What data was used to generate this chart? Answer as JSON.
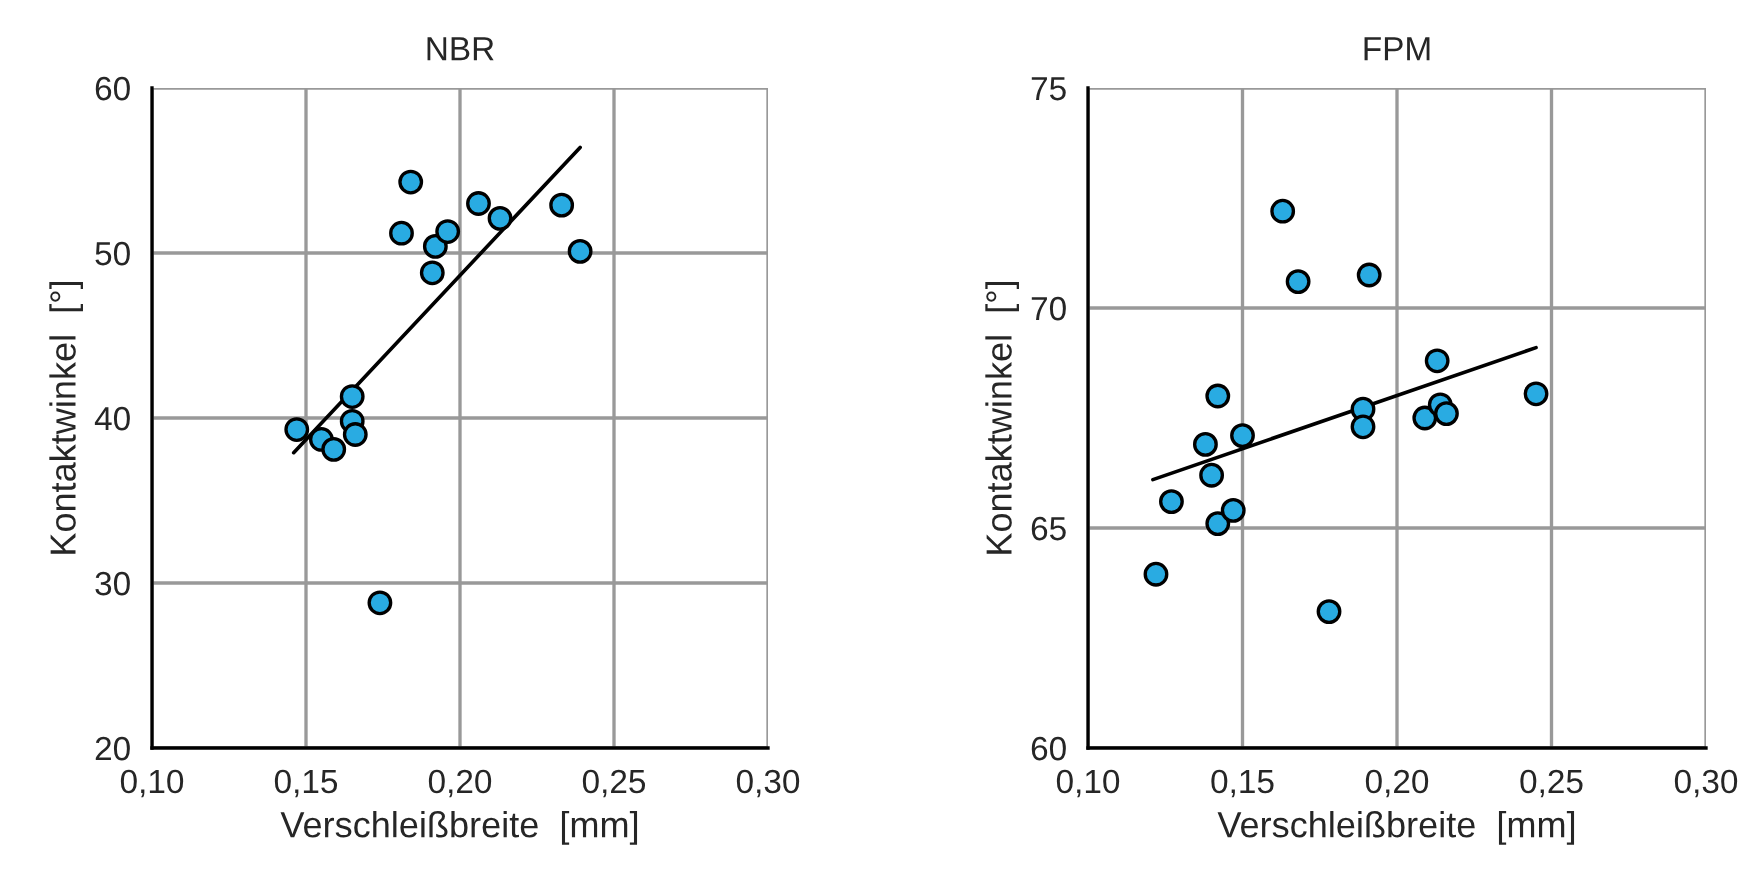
{
  "chart_data": [
    {
      "type": "scatter",
      "title": "NBR",
      "xlabel": "Verschleißbreite  [mm]",
      "ylabel": "Kontaktwinkel  [°]",
      "xlim": [
        0.1,
        0.3
      ],
      "ylim": [
        20,
        60
      ],
      "xticks": [
        {
          "value": 0.1,
          "label": "0,10"
        },
        {
          "value": 0.15,
          "label": "0,15"
        },
        {
          "value": 0.2,
          "label": "0,20"
        },
        {
          "value": 0.25,
          "label": "0,25"
        },
        {
          "value": 0.3,
          "label": "0,30"
        }
      ],
      "yticks": [
        20,
        30,
        40,
        50,
        60
      ],
      "grid": true,
      "marker": "circle",
      "series": [
        {
          "color": "#29abe2",
          "x": [
            0.147,
            0.155,
            0.159,
            0.165,
            0.165,
            0.166,
            0.174,
            0.181,
            0.184,
            0.191,
            0.192,
            0.196,
            0.206,
            0.213,
            0.233,
            0.239
          ],
          "values": [
            39.3,
            38.7,
            38.1,
            41.3,
            39.8,
            39.0,
            28.8,
            51.2,
            54.3,
            48.8,
            50.4,
            51.3,
            53.0,
            52.1,
            52.9,
            50.1
          ]
        },
        {
          "type": "line",
          "color": "#000000",
          "marker": "none",
          "line_style": "solid",
          "x": [
            0.146,
            0.239
          ],
          "values": [
            37.9,
            56.4
          ]
        }
      ]
    },
    {
      "type": "scatter",
      "title": "FPM",
      "xlabel": "Verschleißbreite  [mm]",
      "ylabel": "Kontaktwinkel  [°]",
      "xlim": [
        0.1,
        0.3
      ],
      "ylim": [
        60,
        75
      ],
      "xticks": [
        {
          "value": 0.1,
          "label": "0,10"
        },
        {
          "value": 0.15,
          "label": "0,15"
        },
        {
          "value": 0.2,
          "label": "0,20"
        },
        {
          "value": 0.25,
          "label": "0,25"
        },
        {
          "value": 0.3,
          "label": "0,30"
        }
      ],
      "yticks": [
        60,
        65,
        70,
        75
      ],
      "grid": true,
      "marker": "circle",
      "series": [
        {
          "color": "#29abe2",
          "x": [
            0.122,
            0.127,
            0.138,
            0.14,
            0.142,
            0.142,
            0.147,
            0.15,
            0.163,
            0.168,
            0.191,
            0.178,
            0.189,
            0.189,
            0.209,
            0.213,
            0.214,
            0.216,
            0.245
          ],
          "values": [
            63.95,
            65.6,
            66.9,
            66.2,
            68.0,
            65.1,
            65.4,
            67.1,
            72.2,
            70.6,
            70.75,
            63.1,
            67.7,
            67.3,
            67.5,
            68.8,
            67.8,
            67.6,
            68.05
          ]
        },
        {
          "type": "line",
          "color": "#000000",
          "marker": "none",
          "line_style": "solid",
          "x": [
            0.121,
            0.245
          ],
          "values": [
            66.1,
            69.1
          ]
        }
      ]
    }
  ]
}
